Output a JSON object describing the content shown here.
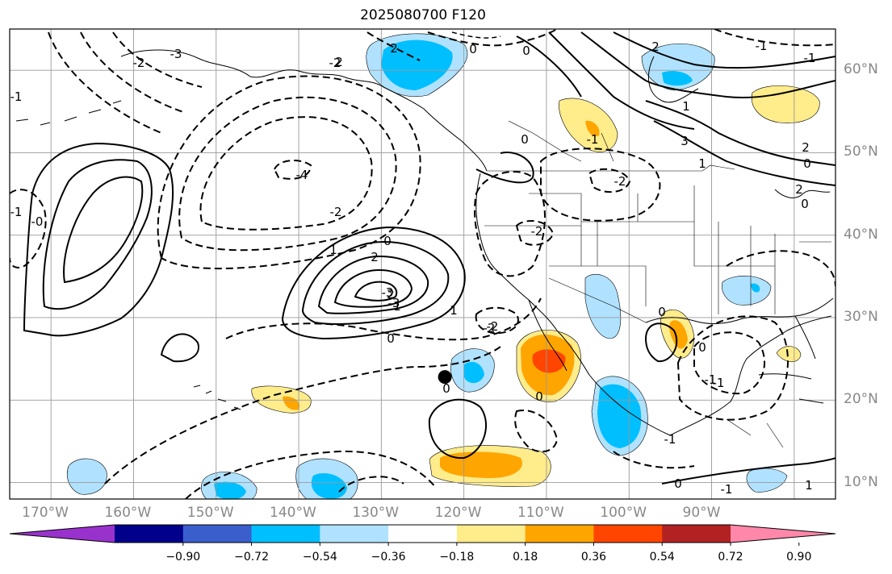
{
  "title": "2025080700 F120",
  "map": {
    "lon_labels": [
      "170°W",
      "160°W",
      "150°W",
      "140°W",
      "130°W",
      "120°W",
      "110°W",
      "100°W",
      "90°W"
    ],
    "lat_labels": [
      "60°N",
      "50°N",
      "40°N",
      "30°N",
      "20°N",
      "10°N"
    ],
    "extent": {
      "lon_min": -175,
      "lon_max": -75,
      "lat_min": 8,
      "lat_max": 65
    },
    "contour_labels": [
      "-3",
      "-2",
      "-2",
      "-1",
      "0",
      "2",
      "2",
      "-1",
      "0",
      "1",
      "3",
      "2",
      "1",
      "0",
      "2",
      "-1",
      "2",
      "0",
      "-2",
      "-4",
      "-3",
      "-2",
      "1",
      "0",
      "2",
      "-3",
      "2",
      "1",
      "-1",
      "0",
      "-2",
      "0",
      "-2",
      "1",
      "-2",
      "0",
      "0",
      "-1",
      "0",
      "0",
      "-1",
      "-0",
      "-1",
      "-1",
      "0",
      "1",
      "-1"
    ],
    "marker": {
      "lon": -122.3,
      "lat": 22.8
    }
  },
  "colorbar": {
    "ticks": [
      "−0.90",
      "−0.72",
      "−0.54",
      "−0.36",
      "−0.18",
      "0.18",
      "0.36",
      "0.54",
      "0.72",
      "0.90"
    ],
    "colors": [
      "#9932cc",
      "#00008b",
      "#3a5fcd",
      "#00bfff",
      "#b0e2ff",
      "#ffffff",
      "#ffec8b",
      "#ffa500",
      "#ff4500",
      "#b22222",
      "#ff88aa"
    ]
  },
  "shading_colors": {
    "light_blue": "#b0e2ff",
    "blue": "#00bfff",
    "light_yellow": "#ffec8b",
    "orange": "#ffa500",
    "red": "#ff4500"
  }
}
